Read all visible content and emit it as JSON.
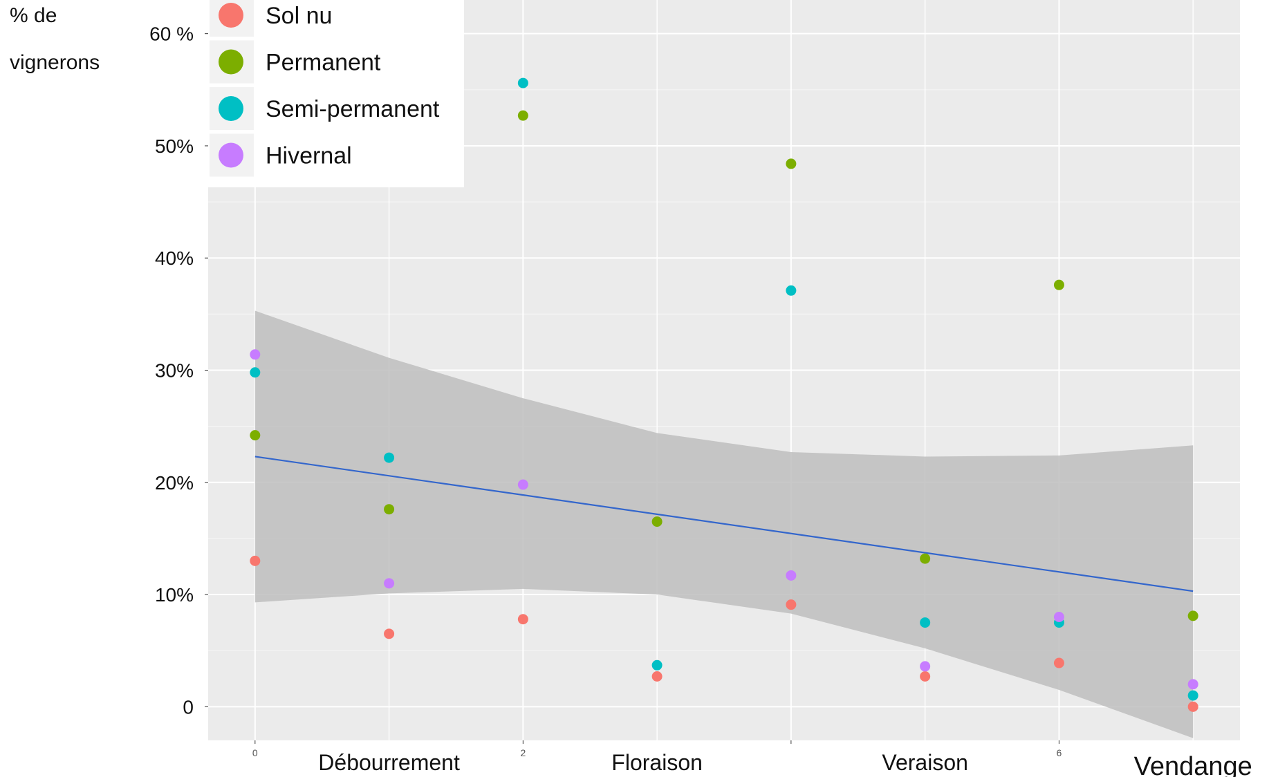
{
  "chart_data": {
    "type": "scatter",
    "ylabel": [
      "% de",
      "vignerons"
    ],
    "y_ticks": [
      {
        "value": 0,
        "label": "0"
      },
      {
        "value": 10,
        "label": "10%"
      },
      {
        "value": 20,
        "label": "20%"
      },
      {
        "value": 30,
        "label": "30%"
      },
      {
        "value": 40,
        "label": "40%"
      },
      {
        "value": 50,
        "label": "50%"
      },
      {
        "value": 60,
        "label": "60 %"
      }
    ],
    "x_numeric_ticks": [
      {
        "value": 0,
        "label": "0"
      },
      {
        "value": 2,
        "label": "2"
      },
      {
        "value": 4,
        "label": ""
      },
      {
        "value": 6,
        "label": "6"
      }
    ],
    "x_categories": [
      {
        "value": 1,
        "label": "Débourrement"
      },
      {
        "value": 3,
        "label": "Floraison"
      },
      {
        "value": 5,
        "label": "Veraison"
      },
      {
        "value": 7,
        "label": "Vendange"
      }
    ],
    "xlim": [
      -0.35,
      7.35
    ],
    "ylim": [
      -3,
      63
    ],
    "grid": true,
    "legend_position": "top-left",
    "series": [
      {
        "name": "Sol nu",
        "color": "#F8766D",
        "points": [
          [
            0,
            13
          ],
          [
            1,
            6.5
          ],
          [
            2,
            7.8
          ],
          [
            3,
            2.7
          ],
          [
            4,
            9.1
          ],
          [
            5,
            2.7
          ],
          [
            6,
            3.9
          ],
          [
            7,
            0
          ]
        ]
      },
      {
        "name": "Permanent",
        "color": "#7CAE00",
        "points": [
          [
            0,
            24.2
          ],
          [
            1,
            17.6
          ],
          [
            2,
            52.7
          ],
          [
            3,
            16.5
          ],
          [
            4,
            48.4
          ],
          [
            5,
            13.2
          ],
          [
            6,
            37.6
          ],
          [
            7,
            8.1
          ]
        ]
      },
      {
        "name": "Semi-permanent",
        "color": "#00BFC4",
        "points": [
          [
            0,
            29.8
          ],
          [
            1,
            22.2
          ],
          [
            2,
            55.6
          ],
          [
            3,
            3.7
          ],
          [
            4,
            37.1
          ],
          [
            5,
            7.5
          ],
          [
            6,
            7.5
          ],
          [
            7,
            1
          ]
        ]
      },
      {
        "name": "Hivernal",
        "color": "#C77CFF",
        "points": [
          [
            0,
            31.4
          ],
          [
            1,
            11
          ],
          [
            2,
            19.8
          ],
          [
            4,
            11.7
          ],
          [
            5,
            3.6
          ],
          [
            6,
            8
          ],
          [
            7,
            2
          ]
        ]
      }
    ],
    "trend_line": {
      "color": "#3366CC",
      "points": [
        [
          0,
          22.3
        ],
        [
          7,
          10.3
        ]
      ]
    },
    "confidence_band": {
      "color": "#BEBEBE",
      "upper": [
        [
          0,
          35.3
        ],
        [
          1,
          31.1
        ],
        [
          2,
          27.5
        ],
        [
          3,
          24.4
        ],
        [
          4,
          22.7
        ],
        [
          5,
          22.3
        ],
        [
          6,
          22.4
        ],
        [
          7,
          23.3
        ]
      ],
      "lower": [
        [
          0,
          9.3
        ],
        [
          1,
          10.1
        ],
        [
          2,
          10.5
        ],
        [
          3,
          10
        ],
        [
          4,
          8.3
        ],
        [
          5,
          5.2
        ],
        [
          6,
          1.5
        ],
        [
          7,
          -2.8
        ]
      ]
    }
  }
}
